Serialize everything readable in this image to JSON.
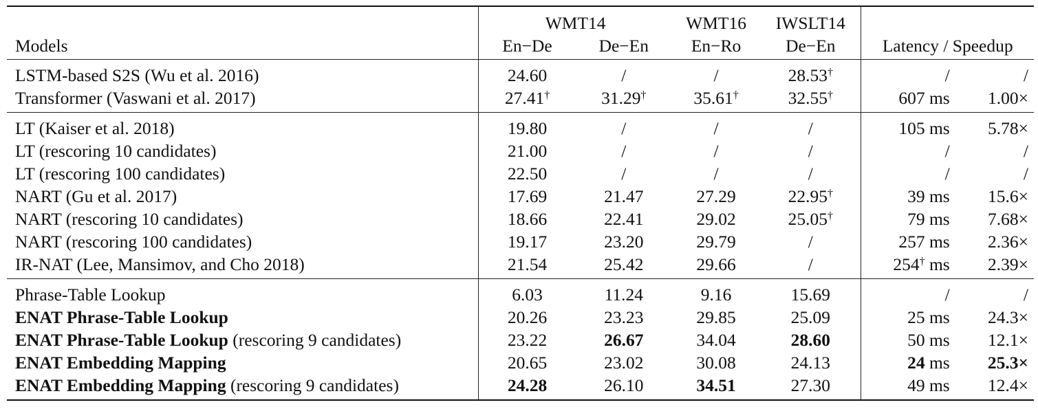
{
  "header": {
    "group_wmt14": "WMT14",
    "group_wmt16": "WMT16",
    "group_iwslt14": "IWSLT14",
    "models_label": "Models",
    "col_en_de": "En−De",
    "col_de_en": "De−En",
    "col_en_ro": "En−Ro",
    "col_de_en_iwslt": "De−En",
    "col_latency_speedup": "Latency / Speedup"
  },
  "groups": [
    {
      "rows": [
        {
          "model": "LSTM-based S2S (Wu et al. 2016)",
          "bold_model": false,
          "suffix": "",
          "values": [
            "24.60",
            "/",
            "/",
            "28.53†",
            "/",
            "/"
          ]
        },
        {
          "model": "Transformer (Vaswani et al. 2017)",
          "bold_model": false,
          "suffix": "",
          "values": [
            "27.41†",
            "31.29†",
            "35.61†",
            "32.55†",
            "607 ms",
            "1.00×"
          ]
        }
      ]
    },
    {
      "rows": [
        {
          "model": "LT (Kaiser et al. 2018)",
          "bold_model": false,
          "suffix": "",
          "values": [
            "19.80",
            "/",
            "/",
            "/",
            "105 ms",
            "5.78×"
          ]
        },
        {
          "model": "LT (rescoring 10 candidates)",
          "bold_model": false,
          "suffix": "",
          "values": [
            "21.00",
            "/",
            "/",
            "/",
            "/",
            "/"
          ]
        },
        {
          "model": "LT (rescoring 100 candidates)",
          "bold_model": false,
          "suffix": "",
          "values": [
            "22.50",
            "/",
            "/",
            "/",
            "/",
            "/"
          ]
        },
        {
          "model": "NART (Gu et al. 2017)",
          "bold_model": false,
          "suffix": "",
          "values": [
            "17.69",
            "21.47",
            "27.29",
            "22.95†",
            "39 ms",
            "15.6×"
          ]
        },
        {
          "model": "NART (rescoring 10 candidates)",
          "bold_model": false,
          "suffix": "",
          "values": [
            "18.66",
            "22.41",
            "29.02",
            "25.05†",
            "79 ms",
            "7.68×"
          ]
        },
        {
          "model": "NART (rescoring 100 candidates)",
          "bold_model": false,
          "suffix": "",
          "values": [
            "19.17",
            "23.20",
            "29.79",
            "/",
            "257 ms",
            "2.36×"
          ]
        },
        {
          "model": "IR-NAT (Lee, Mansimov, and Cho 2018)",
          "bold_model": false,
          "suffix": "",
          "values": [
            "21.54",
            "25.42",
            "29.66",
            "/",
            "254† ms",
            "2.39×"
          ]
        }
      ]
    },
    {
      "rows": [
        {
          "model": "Phrase-Table Lookup",
          "bold_model": false,
          "suffix": "",
          "values": [
            "6.03",
            "11.24",
            "9.16",
            "15.69",
            "/",
            "/"
          ]
        },
        {
          "model": "ENAT Phrase-Table Lookup",
          "bold_model": true,
          "suffix": "",
          "values": [
            "20.26",
            "23.23",
            "29.85",
            "25.09",
            "25 ms",
            "24.3×"
          ]
        },
        {
          "model": "ENAT Phrase-Table Lookup",
          "bold_model": true,
          "suffix": " (rescoring 9 candidates)",
          "values": [
            "23.22",
            "26.67",
            "34.04",
            "28.60",
            "50 ms",
            "12.1×"
          ],
          "bold_cells": [
            1,
            3
          ]
        },
        {
          "model": "ENAT Embedding Mapping",
          "bold_model": true,
          "suffix": "",
          "values": [
            "20.65",
            "23.02",
            "30.08",
            "24.13",
            "24 ms",
            "25.3×"
          ],
          "bold_cells": [
            5
          ],
          "bold_prefix_cells": {
            "4": "24"
          }
        },
        {
          "model": "ENAT Embedding Mapping",
          "bold_model": true,
          "suffix": " (rescoring 9 candidates)",
          "values": [
            "24.28",
            "26.10",
            "34.51",
            "27.30",
            "49 ms",
            "12.4×"
          ],
          "bold_cells": [
            0,
            2
          ]
        }
      ]
    }
  ]
}
